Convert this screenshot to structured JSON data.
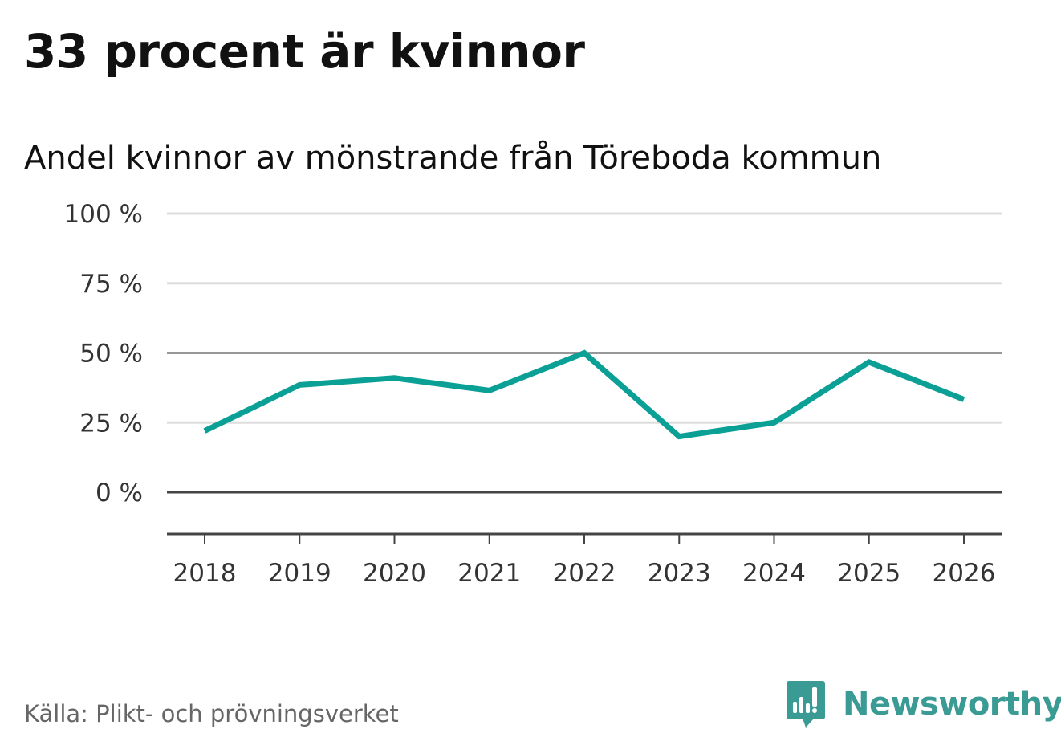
{
  "chart_data": {
    "type": "line",
    "title": "33 procent är kvinnor",
    "subtitle": "Andel kvinnor av mönstrande från Töreboda kommun",
    "categories": [
      "2018",
      "2019",
      "2020",
      "2021",
      "2022",
      "2023",
      "2024",
      "2025",
      "2026"
    ],
    "series": [
      {
        "name": "Andel kvinnor",
        "values": [
          22,
          38.5,
          41,
          36.5,
          50,
          20,
          25,
          46.7,
          33.3
        ],
        "color": "#0aa095"
      }
    ],
    "yticks": [
      100,
      75,
      50,
      25,
      0
    ],
    "ytick_labels": [
      "100 %",
      "75 %",
      "50 %",
      "25 %",
      "0 %"
    ],
    "ylim": [
      -15,
      100
    ],
    "xlabel": "",
    "ylabel": "",
    "grid": true
  },
  "footer": {
    "source": "Källa: Plikt- och prövningsverket",
    "brand": "Newsworthy",
    "brand_icon": "newsworthy-logo-icon",
    "brand_color": "#3a9a94"
  }
}
